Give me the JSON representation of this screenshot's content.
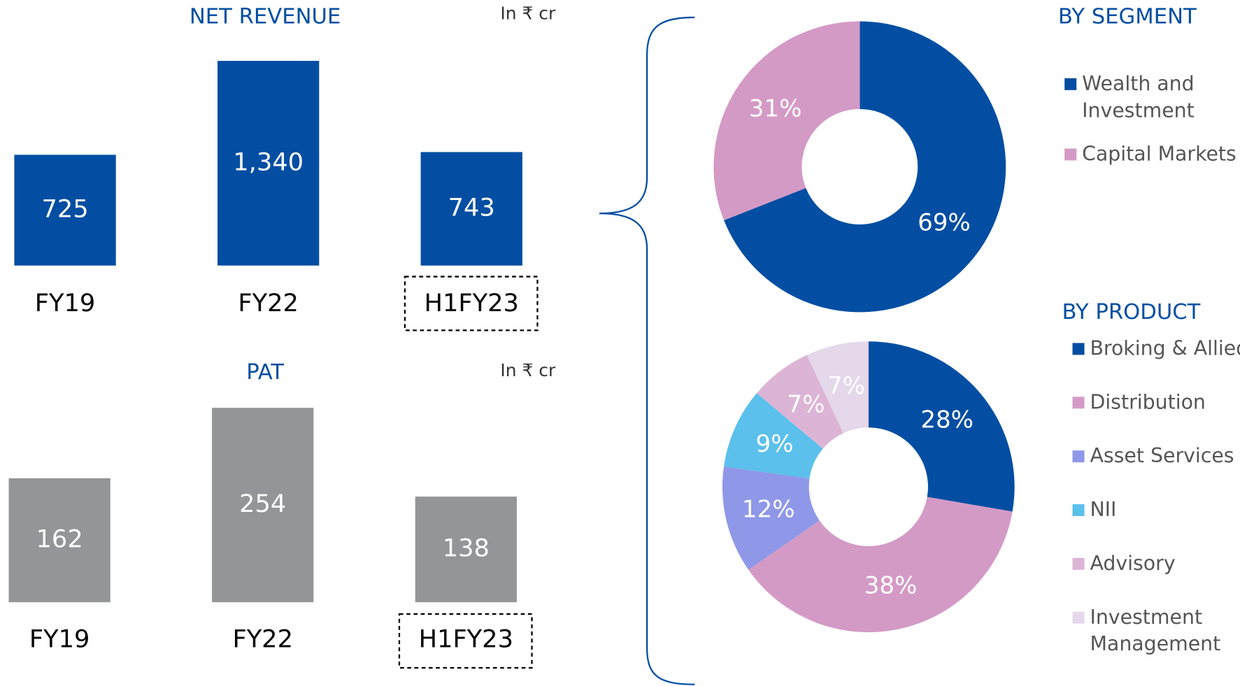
{
  "chart_data": [
    {
      "type": "bar",
      "title": "NET REVENUE",
      "subtitle": "In ₹ cr",
      "categories": [
        "FY19",
        "FY22",
        "H1FY23"
      ],
      "values": [
        725,
        1340,
        743
      ],
      "value_labels": [
        "725",
        "1,340",
        "743"
      ],
      "color": "#034ea2"
    },
    {
      "type": "bar",
      "title": "PAT",
      "subtitle": "In ₹ cr",
      "categories": [
        "FY19",
        "FY22",
        "H1FY23"
      ],
      "values": [
        162,
        254,
        138
      ],
      "color": "#939598"
    },
    {
      "type": "pie",
      "title": "BY SEGMENT",
      "categories": [
        "Wealth and Investment",
        "Capital Markets"
      ],
      "values": [
        69,
        31
      ],
      "value_labels": [
        "69%",
        "31%"
      ],
      "colors": [
        "#034ea2",
        "#d49ac6"
      ]
    },
    {
      "type": "pie",
      "title": "BY PRODUCT",
      "categories": [
        "Broking & Allied",
        "Distribution",
        "Asset Services",
        "NII",
        "Advisory",
        "Investment Management"
      ],
      "values": [
        28,
        38,
        12,
        9,
        7,
        7
      ],
      "value_labels": [
        "28%",
        "38%",
        "12%",
        "9%",
        "7%",
        "7%"
      ],
      "colors": [
        "#034ea2",
        "#d49ac6",
        "#8f97e8",
        "#5bc0eb",
        "#dcb4d6",
        "#e4d8ea"
      ]
    }
  ]
}
